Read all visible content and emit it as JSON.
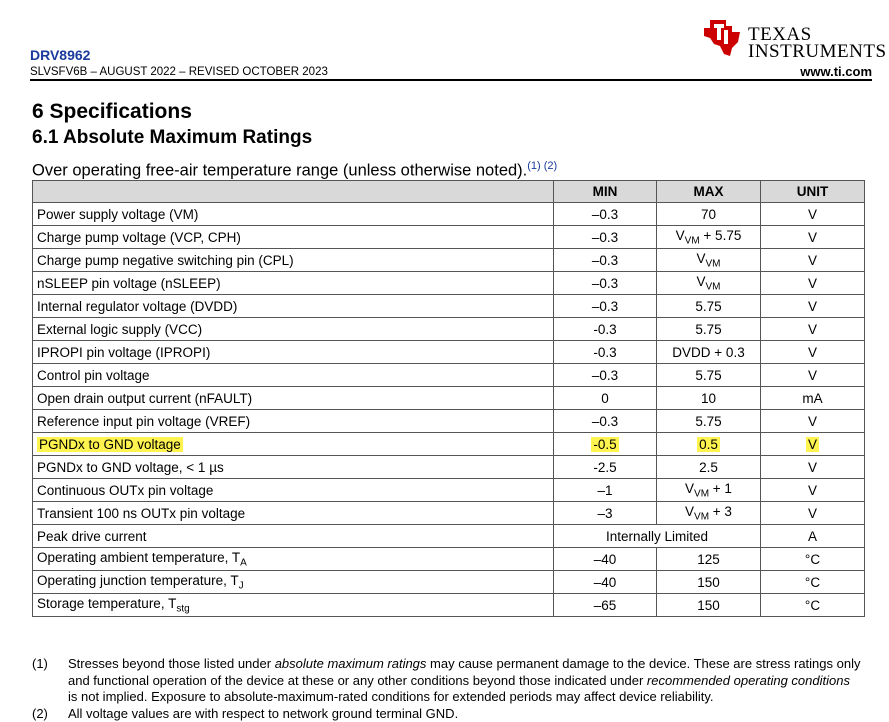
{
  "header": {
    "part_number": "DRV8962",
    "doc_id": "SLVSFV6B – AUGUST 2022 – REVISED OCTOBER 2023",
    "website": "www.ti.com",
    "logo_line1": "TEXAS",
    "logo_line2": "INSTRUMENTS",
    "brand_color": "#cc0000",
    "link_color": "#1a3a9c"
  },
  "section_title": "6 Specifications",
  "subsection_title": "6.1 Absolute Maximum Ratings",
  "intro": {
    "text": "Over operating free-air temperature range (unless otherwise noted).",
    "refs": "(1) (2)"
  },
  "table": {
    "headers": [
      "",
      "MIN",
      "MAX",
      "UNIT"
    ],
    "rows": [
      {
        "param": "Power supply voltage (VM)",
        "min": "–0.3",
        "max": "70",
        "unit": "V"
      },
      {
        "param": "Charge pump voltage (VCP, CPH)",
        "min": "–0.3",
        "max_base": "V",
        "max_sub": "VM",
        "max_suffix": " + 5.75",
        "unit": "V"
      },
      {
        "param": "Charge pump negative switching pin (CPL)",
        "min": "–0.3",
        "max_base": "V",
        "max_sub": "VM",
        "max_suffix": "",
        "unit": "V"
      },
      {
        "param": "nSLEEP pin voltage (nSLEEP)",
        "min": "–0.3",
        "max_base": "V",
        "max_sub": "VM",
        "max_suffix": "",
        "unit": "V"
      },
      {
        "param": "Internal regulator voltage (DVDD)",
        "min": "–0.3",
        "max": "5.75",
        "unit": "V"
      },
      {
        "param": "External logic supply (VCC)",
        "min": "-0.3",
        "max": "5.75",
        "unit": "V"
      },
      {
        "param": "IPROPI pin voltage (IPROPI)",
        "min": "-0.3",
        "max": "DVDD + 0.3",
        "unit": "V"
      },
      {
        "param": "Control pin voltage",
        "min": "–0.3",
        "max": "5.75",
        "unit": "V"
      },
      {
        "param": "Open drain output current (nFAULT)",
        "min": "0",
        "max": "10",
        "unit": "mA"
      },
      {
        "param": "Reference input pin voltage (VREF)",
        "min": "–0.3",
        "max": "5.75",
        "unit": "V"
      },
      {
        "param": "PGNDx to GND voltage",
        "min": "-0.5",
        "max": "0.5",
        "unit": "V",
        "highlight": true
      },
      {
        "param": "PGNDx to GND voltage, < 1 µs",
        "min": "-2.5",
        "max": "2.5",
        "unit": "V"
      },
      {
        "param": "Continuous OUTx pin voltage",
        "min": "–1",
        "max_base": "V",
        "max_sub": "VM",
        "max_suffix": " + 1",
        "unit": "V"
      },
      {
        "param": "Transient 100 ns OUTx pin voltage",
        "min": "–3",
        "max_base": "V",
        "max_sub": "VM",
        "max_suffix": " + 3",
        "unit": "V"
      },
      {
        "param": "Peak drive current",
        "span": "Internally Limited",
        "unit": "A"
      },
      {
        "param_base": "Operating ambient temperature, T",
        "param_sub": "A",
        "min": "–40",
        "max": "125",
        "unit": "°C"
      },
      {
        "param_base": "Operating junction temperature, T",
        "param_sub": "J",
        "min": "–40",
        "max": "150",
        "unit": "°C"
      },
      {
        "param_base": "Storage temperature, T",
        "param_sub": "stg",
        "min": "–65",
        "max": "150",
        "unit": "°C"
      }
    ]
  },
  "highlight_color": "#fff44f",
  "notes": [
    {
      "num": "(1)",
      "parts": [
        {
          "t": "Stresses beyond those listed under "
        },
        {
          "t": "absolute maximum ratings",
          "i": true
        },
        {
          "t": " may cause permanent damage to the device. These are stress ratings only and functional operation of the device at these or any other conditions beyond those indicated under "
        },
        {
          "t": "recommended operating conditions",
          "i": true
        },
        {
          "t": " is not implied. Exposure to absolute-maximum-rated conditions for extended periods may affect device reliability."
        }
      ]
    },
    {
      "num": "(2)",
      "parts": [
        {
          "t": "All voltage values are with respect to network ground terminal GND."
        }
      ]
    }
  ]
}
